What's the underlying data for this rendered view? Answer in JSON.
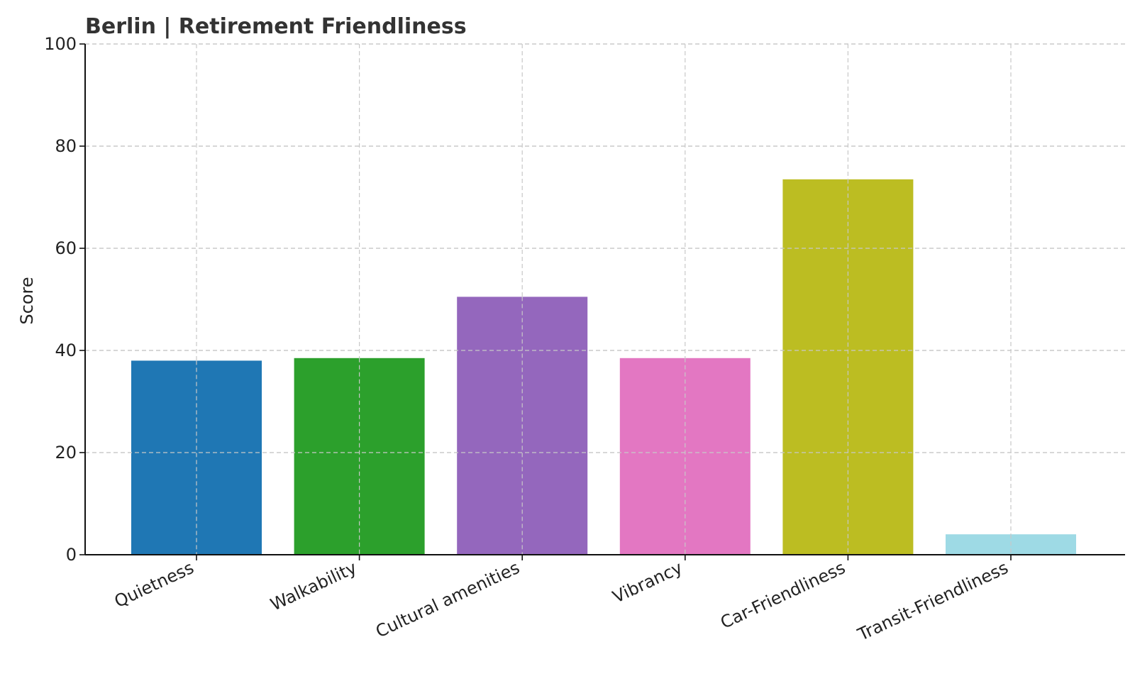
{
  "chart_data": {
    "type": "bar",
    "title": "Berlin | Retirement Friendliness",
    "xlabel": "",
    "ylabel": "Score",
    "ylim": [
      0,
      100
    ],
    "yticks": [
      0,
      20,
      40,
      60,
      80,
      100
    ],
    "grid": true,
    "categories": [
      "Quietness",
      "Walkability",
      "Cultural amenities",
      "Vibrancy",
      "Car-Friendliness",
      "Transit-Friendliness"
    ],
    "values": [
      38,
      38.5,
      50.5,
      38.5,
      73.5,
      4
    ],
    "colors": [
      "#1f77b4",
      "#2ca02c",
      "#9467bd",
      "#e377c2",
      "#bcbd22",
      "#9edae5"
    ]
  }
}
